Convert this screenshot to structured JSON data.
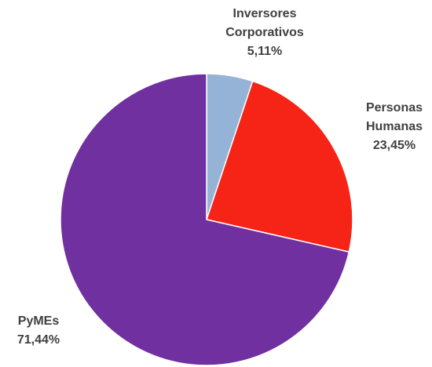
{
  "chart_data": {
    "type": "pie",
    "title": "",
    "start_angle_deg": 0,
    "direction": "clockwise",
    "slices": [
      {
        "name_lines": [
          "Inversores",
          "Corporativos"
        ],
        "label": "Inversores Corporativos",
        "value": 5.11,
        "value_label": "5,11%",
        "color": "#95b3d7"
      },
      {
        "name_lines": [
          "Personas",
          "Humanas"
        ],
        "label": "Personas Humanas",
        "value": 23.45,
        "value_label": "23,45%",
        "color": "#f52417"
      },
      {
        "name_lines": [
          "PyMEs"
        ],
        "label": "PyMEs",
        "value": 71.44,
        "value_label": "71,44%",
        "color": "#7030a0"
      }
    ],
    "slice_border_color": "#ffffff"
  }
}
